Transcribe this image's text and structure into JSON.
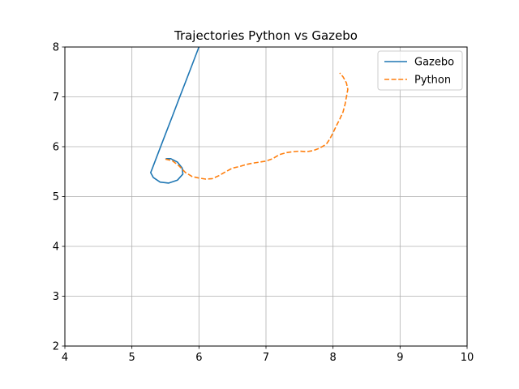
{
  "chart_data": {
    "type": "line",
    "title": "Trajectories Python vs Gazebo",
    "xlabel": "",
    "ylabel": "",
    "xlim": [
      4,
      10
    ],
    "ylim": [
      2,
      8
    ],
    "xticks": [
      "4",
      "5",
      "6",
      "7",
      "8",
      "9",
      "10"
    ],
    "yticks": [
      "2",
      "3",
      "4",
      "5",
      "6",
      "7",
      "8"
    ],
    "grid": true,
    "legend_position": "top-right",
    "series": [
      {
        "name": "Gazebo",
        "color": "#1f77b4",
        "style": "solid",
        "x": [
          6.0,
          5.9,
          5.8,
          5.7,
          5.6,
          5.5,
          5.4,
          5.3,
          5.28,
          5.32,
          5.42,
          5.55,
          5.68,
          5.76,
          5.75,
          5.68,
          5.58,
          5.52,
          5.5
        ],
        "y": [
          8.0,
          7.65,
          7.3,
          6.95,
          6.6,
          6.25,
          5.9,
          5.55,
          5.48,
          5.38,
          5.29,
          5.27,
          5.33,
          5.45,
          5.57,
          5.69,
          5.76,
          5.76,
          5.75
        ]
      },
      {
        "name": "Python",
        "color": "#ff7f0e",
        "style": "dashed",
        "x": [
          5.5,
          5.6,
          5.7,
          5.8,
          5.9,
          6.0,
          6.1,
          6.2,
          6.3,
          6.4,
          6.5,
          6.6,
          6.7,
          6.8,
          6.9,
          7.0,
          7.1,
          7.2,
          7.3,
          7.4,
          7.5,
          7.6,
          7.7,
          7.8,
          7.9,
          7.95,
          8.0,
          8.05,
          8.1,
          8.15,
          8.18,
          8.2,
          8.22,
          8.2,
          8.15,
          8.1
        ],
        "y": [
          5.75,
          5.72,
          5.62,
          5.48,
          5.4,
          5.37,
          5.35,
          5.36,
          5.42,
          5.5,
          5.57,
          5.6,
          5.64,
          5.67,
          5.69,
          5.71,
          5.76,
          5.84,
          5.88,
          5.9,
          5.91,
          5.9,
          5.92,
          5.97,
          6.05,
          6.15,
          6.28,
          6.42,
          6.55,
          6.7,
          6.85,
          7.0,
          7.15,
          7.28,
          7.4,
          7.48
        ]
      }
    ]
  }
}
